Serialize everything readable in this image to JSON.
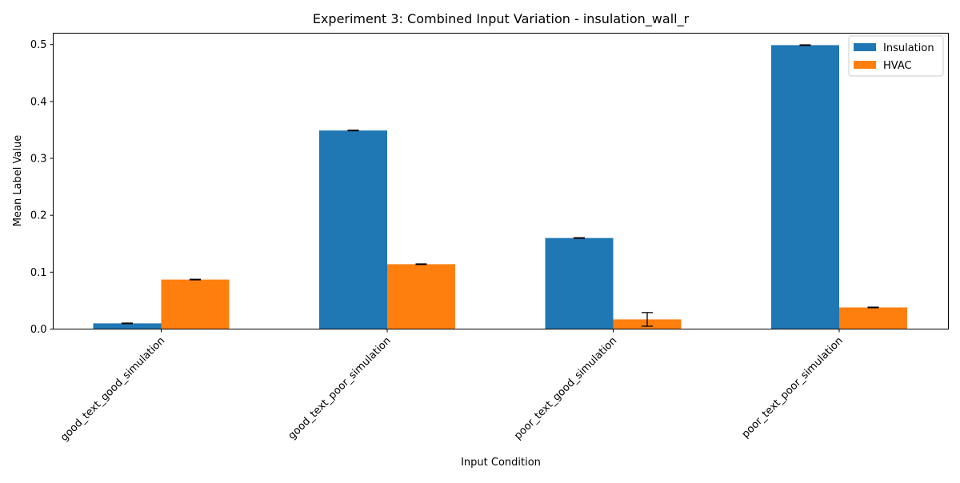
{
  "chart_data": {
    "type": "bar",
    "title": "Experiment 3: Combined Input Variation - insulation_wall_r",
    "xlabel": "Input Condition",
    "ylabel": "Mean Label Value",
    "categories": [
      "good_text_good_simulation",
      "good_text_poor_simulation",
      "poor_text_good_simulation",
      "poor_text_poor_simulation"
    ],
    "series": [
      {
        "name": "Insulation",
        "color": "#1f77b4",
        "values": [
          0.01,
          0.349,
          0.16,
          0.499
        ],
        "errors": [
          0.0005,
          0.0005,
          0.0005,
          0.0005
        ]
      },
      {
        "name": "HVAC",
        "color": "#ff7f0e",
        "values": [
          0.087,
          0.114,
          0.017,
          0.038
        ],
        "errors": [
          0.0005,
          0.0005,
          0.012,
          0.0005
        ]
      }
    ],
    "ylim": [
      0,
      0.52
    ],
    "yticks": [
      0.0,
      0.1,
      0.2,
      0.3,
      0.4,
      0.5
    ],
    "ytick_labels": [
      "0.0",
      "0.1",
      "0.2",
      "0.3",
      "0.4",
      "0.5"
    ],
    "grid": false,
    "legend_position": "top-right"
  }
}
